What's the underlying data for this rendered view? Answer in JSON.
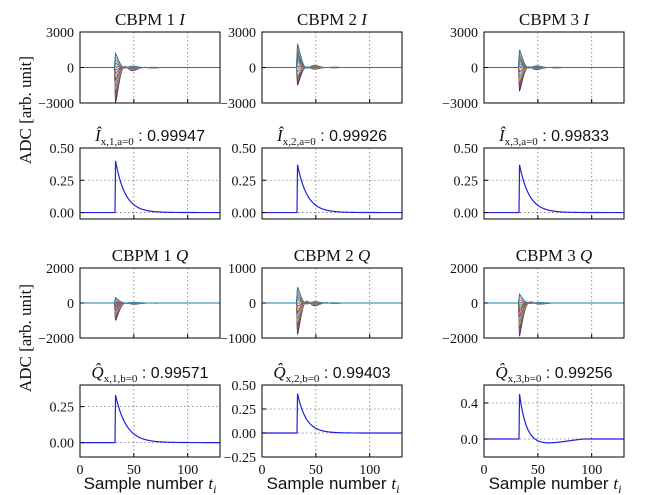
{
  "figure": {
    "ylabel_adc": "ADC [arb. unit]",
    "xlabel_sample_prefix": "Sample number ",
    "xlabel_sample_var": "t",
    "xlabel_sample_sub": "i"
  },
  "chart_data": [
    {
      "id": "I1",
      "type": "line",
      "title_text": "CBPM 1 ",
      "title_var": "I",
      "xlim": [
        0,
        130
      ],
      "ylim": [
        -3000,
        3000
      ],
      "yticks": [
        -3000,
        0,
        3000
      ],
      "ytick_labels": [
        "−3000",
        "0",
        "3000"
      ],
      "grid": true,
      "series_count": 16,
      "pulse": {
        "t0": 33,
        "amp_max": 1200,
        "amp_min": -3000,
        "tau": 7,
        "osc_period": 18,
        "osc_depth": 0.55
      }
    },
    {
      "id": "I2",
      "type": "line",
      "title_text": "CBPM 2 ",
      "title_var": "I",
      "xlim": [
        0,
        130
      ],
      "ylim": [
        -3000,
        3000
      ],
      "yticks": [
        -3000,
        0,
        3000
      ],
      "ytick_labels": [
        "−3000",
        "0",
        "3000"
      ],
      "grid": true,
      "series_count": 16,
      "pulse": {
        "t0": 33,
        "amp_max": 2000,
        "amp_min": -1500,
        "tau": 7,
        "osc_period": 18,
        "osc_depth": 0.55
      }
    },
    {
      "id": "I3",
      "type": "line",
      "title_text": "CBPM 3 ",
      "title_var": "I",
      "xlim": [
        0,
        130
      ],
      "ylim": [
        -3000,
        3000
      ],
      "yticks": [
        -3000,
        0,
        3000
      ],
      "ytick_labels": [
        "−3000",
        "0",
        "3000"
      ],
      "grid": true,
      "series_count": 16,
      "pulse": {
        "t0": 33,
        "amp_max": 1500,
        "amp_min": -2000,
        "tau": 7,
        "osc_period": 18,
        "osc_depth": 0.55
      }
    },
    {
      "id": "Ihat1",
      "type": "line",
      "title_hat": "Î",
      "title_sub": "x,1,a=0",
      "title_value": " : 0.99947",
      "xlim": [
        0,
        130
      ],
      "ylim": [
        -0.05,
        0.5
      ],
      "yticks": [
        0.0,
        0.25,
        0.5
      ],
      "ytick_labels": [
        "0.00",
        "0.25",
        "0.50"
      ],
      "grid": true,
      "peak": {
        "t0": 33,
        "value": 0.4,
        "tau": 9,
        "undershoot": 0
      }
    },
    {
      "id": "Ihat2",
      "type": "line",
      "title_hat": "Î",
      "title_sub": "x,2,a=0",
      "title_value": " : 0.99926",
      "xlim": [
        0,
        130
      ],
      "ylim": [
        -0.05,
        0.5
      ],
      "yticks": [
        0.0,
        0.25,
        0.5
      ],
      "ytick_labels": [
        "0.00",
        "0.25",
        "0.50"
      ],
      "grid": true,
      "peak": {
        "t0": 33,
        "value": 0.37,
        "tau": 9,
        "undershoot": 0
      }
    },
    {
      "id": "Ihat3",
      "type": "line",
      "title_hat": "Î",
      "title_sub": "x,3,a=0",
      "title_value": " : 0.99833",
      "xlim": [
        0,
        130
      ],
      "ylim": [
        -0.05,
        0.5
      ],
      "yticks": [
        0.0,
        0.25,
        0.5
      ],
      "ytick_labels": [
        "0.00",
        "0.25",
        "0.50"
      ],
      "grid": true,
      "peak": {
        "t0": 33,
        "value": 0.37,
        "tau": 9,
        "undershoot": 0
      }
    },
    {
      "id": "Q1",
      "type": "line",
      "title_text": "CBPM 1 ",
      "title_var": "Q",
      "xlim": [
        0,
        130
      ],
      "ylim": [
        -2000,
        2000
      ],
      "yticks": [
        -2000,
        0,
        2000
      ],
      "ytick_labels": [
        "−2000",
        "0",
        "2000"
      ],
      "grid": true,
      "series_count": 16,
      "pulse": {
        "t0": 33,
        "amp_max": 300,
        "amp_min": -1000,
        "tau": 7,
        "osc_period": 20,
        "osc_depth": 0.5
      }
    },
    {
      "id": "Q2",
      "type": "line",
      "title_text": "CBPM 2 ",
      "title_var": "Q",
      "xlim": [
        0,
        130
      ],
      "ylim": [
        -1000,
        1000
      ],
      "yticks": [
        -1000,
        0,
        1000
      ],
      "ytick_labels": [
        "−1000",
        "0",
        "1000"
      ],
      "grid": true,
      "series_count": 16,
      "pulse": {
        "t0": 33,
        "amp_max": 450,
        "amp_min": -900,
        "tau": 7,
        "osc_period": 18,
        "osc_depth": 0.6
      }
    },
    {
      "id": "Q3",
      "type": "line",
      "title_text": "CBPM 3 ",
      "title_var": "Q",
      "xlim": [
        0,
        130
      ],
      "ylim": [
        -2000,
        2000
      ],
      "yticks": [
        -2000,
        0,
        2000
      ],
      "ytick_labels": [
        "−2000",
        "0",
        "2000"
      ],
      "grid": true,
      "series_count": 16,
      "pulse": {
        "t0": 33,
        "amp_max": 500,
        "amp_min": -1900,
        "tau": 6,
        "osc_period": 22,
        "osc_depth": 0.6
      }
    },
    {
      "id": "Qhat1",
      "type": "line",
      "title_hat": "Q̂",
      "title_sub": "x,1,b=0",
      "title_value": " : 0.99571",
      "xlim": [
        0,
        130
      ],
      "ylim": [
        -0.1,
        0.4
      ],
      "yticks": [
        0.0,
        0.25
      ],
      "ytick_labels": [
        "0.00",
        "0.25"
      ],
      "xticks": [
        0,
        50,
        100
      ],
      "xtick_labels": [
        "0",
        "50",
        "100"
      ],
      "grid": true,
      "peak": {
        "t0": 33,
        "value": 0.33,
        "tau": 10,
        "undershoot": 0
      }
    },
    {
      "id": "Qhat2",
      "type": "line",
      "title_hat": "Q̂",
      "title_sub": "x,2,b=0",
      "title_value": " : 0.99403",
      "xlim": [
        0,
        130
      ],
      "ylim": [
        -0.25,
        0.5
      ],
      "yticks": [
        -0.25,
        0.0,
        0.25,
        0.5
      ],
      "ytick_labels": [
        "−0.25",
        "0.00",
        "0.25",
        "0.50"
      ],
      "xticks": [
        0,
        50,
        100
      ],
      "xtick_labels": [
        "0",
        "50",
        "100"
      ],
      "grid": true,
      "peak": {
        "t0": 33,
        "value": 0.41,
        "tau": 8,
        "undershoot": 0
      }
    },
    {
      "id": "Qhat3",
      "type": "line",
      "title_hat": "Q̂",
      "title_sub": "x,3,b=0",
      "title_value": " : 0.99256",
      "xlim": [
        0,
        130
      ],
      "ylim": [
        -0.2,
        0.6
      ],
      "yticks": [
        0.0,
        0.4
      ],
      "ytick_labels": [
        "0.0",
        "0.4"
      ],
      "xticks": [
        0,
        50,
        100
      ],
      "xtick_labels": [
        "0",
        "50",
        "100"
      ],
      "grid": true,
      "peak": {
        "t0": 33,
        "value": 0.5,
        "tau": 6,
        "undershoot": -0.06
      }
    }
  ]
}
